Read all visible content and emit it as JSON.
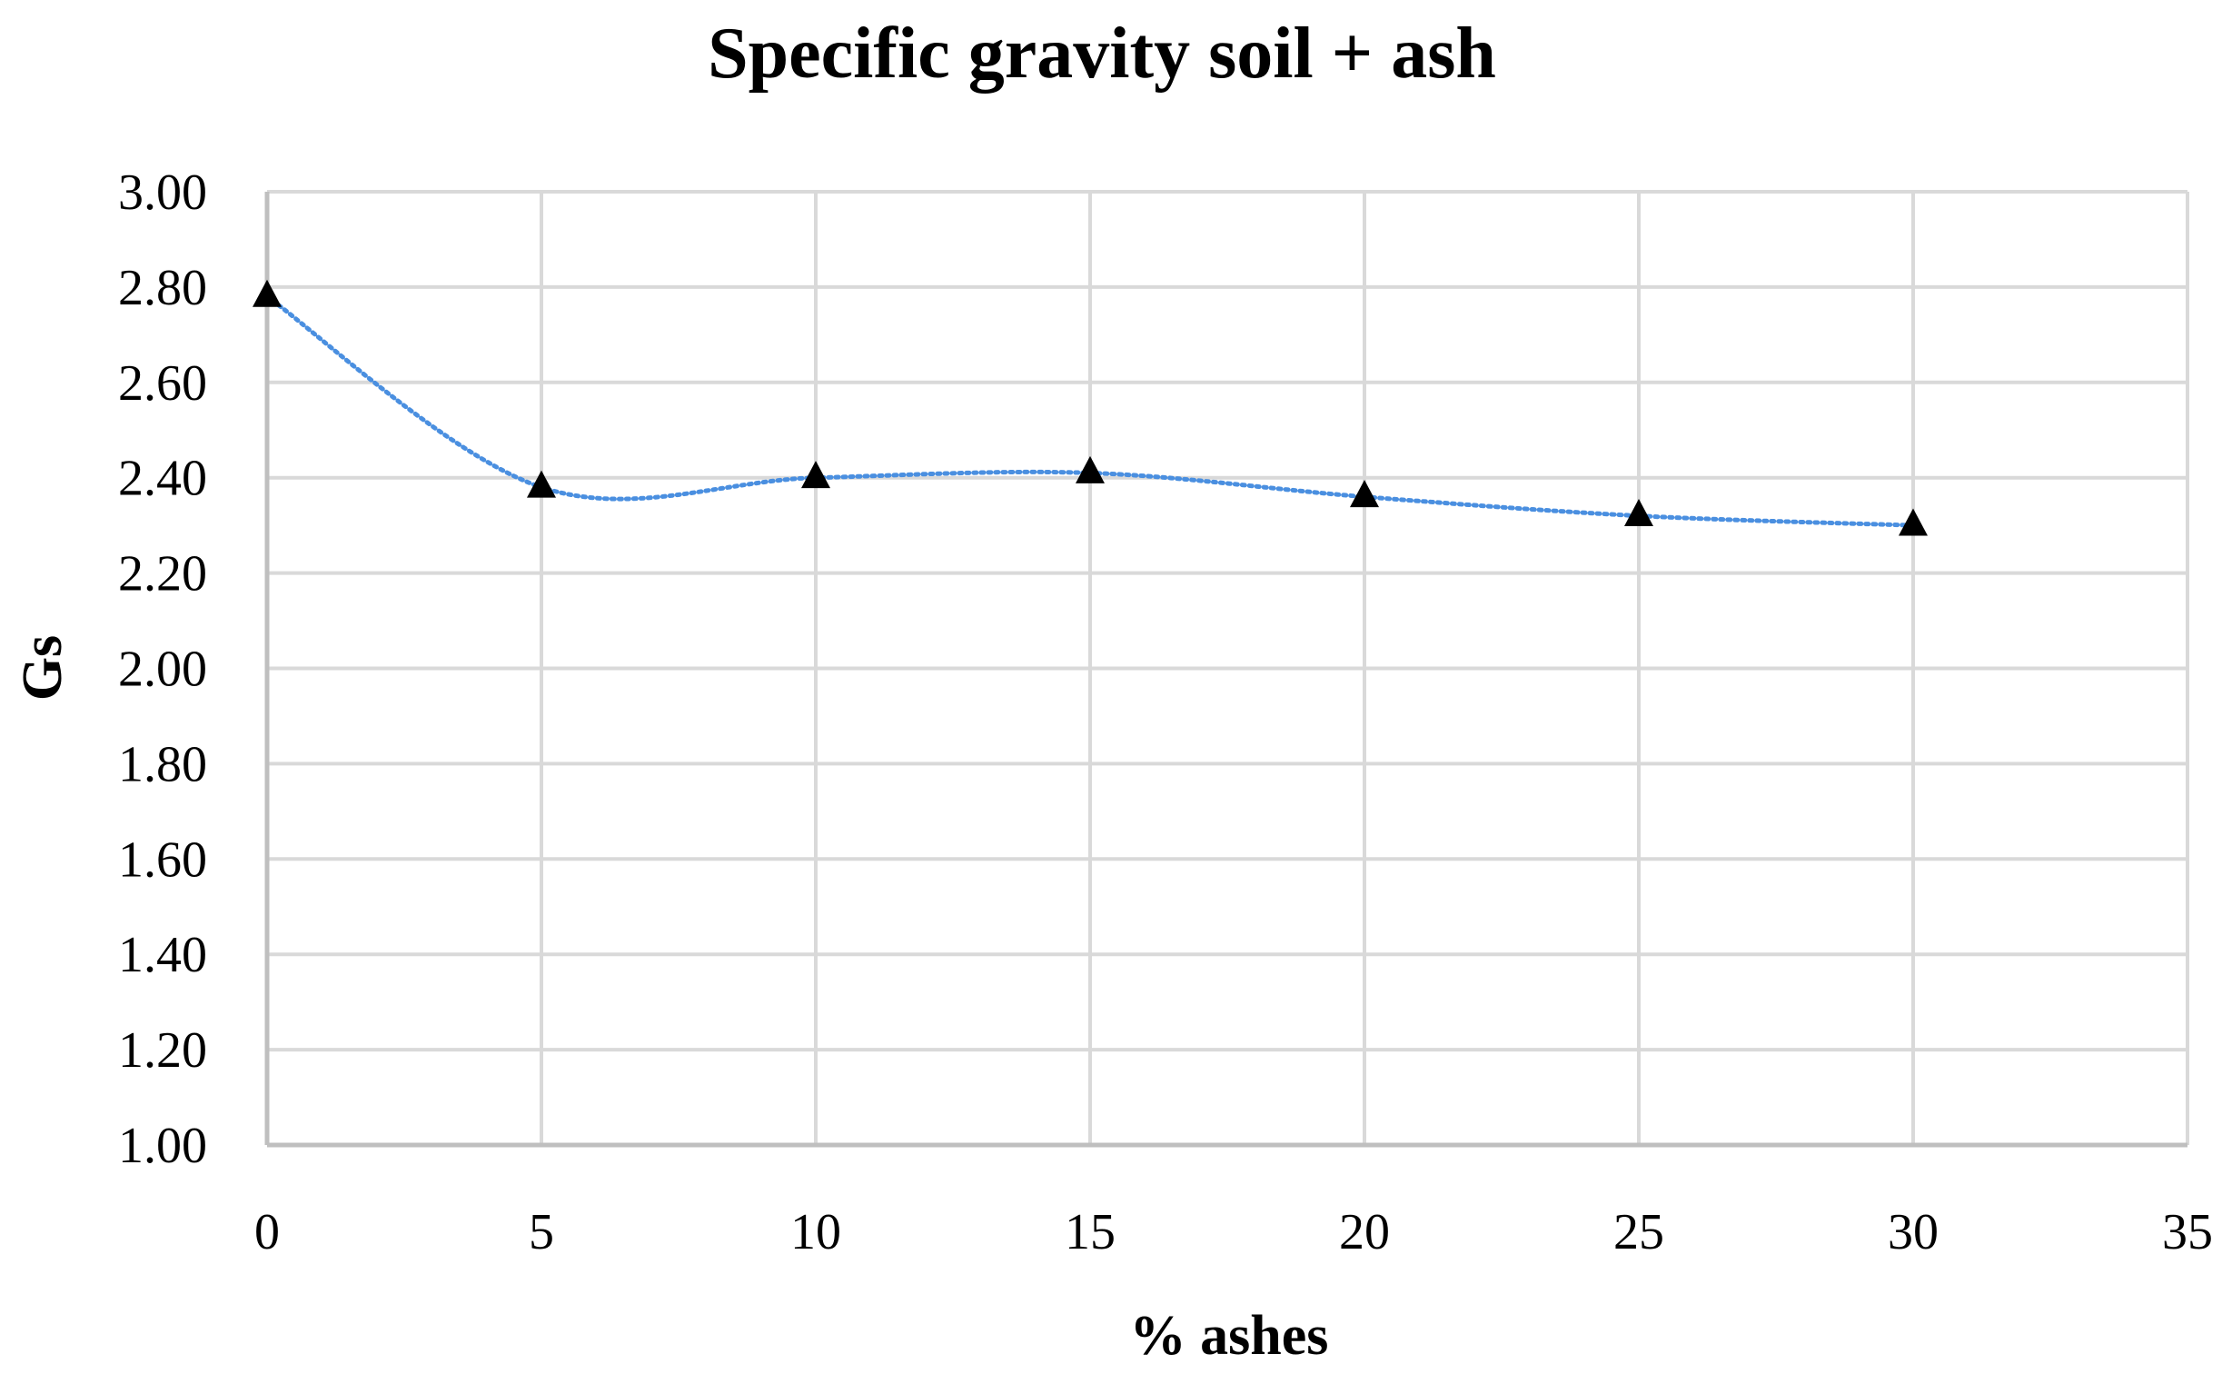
{
  "chart_data": {
    "type": "scatter",
    "title": "Specific gravity soil + ash",
    "xlabel": "% ashes",
    "ylabel": "Gs",
    "xlim": [
      0,
      35
    ],
    "ylim": [
      1.0,
      3.0
    ],
    "x_ticks": [
      0,
      5,
      10,
      15,
      20,
      25,
      30,
      35
    ],
    "y_ticks": [
      "1.00",
      "1.20",
      "1.40",
      "1.60",
      "1.80",
      "2.00",
      "2.20",
      "2.40",
      "2.60",
      "2.80",
      "3.00"
    ],
    "grid": true,
    "legend": "none",
    "marker": "triangle",
    "trendline": "smooth dotted",
    "series": [
      {
        "x": [
          0,
          5,
          10,
          15,
          20,
          25,
          30
        ],
        "y": [
          2.78,
          2.38,
          2.4,
          2.41,
          2.36,
          2.32,
          2.3
        ]
      }
    ],
    "colors": {
      "marker": "#000000",
      "trendline": "#4a8fe0",
      "grid": "#d9d9d9",
      "axis": "#bfbfbf"
    }
  }
}
